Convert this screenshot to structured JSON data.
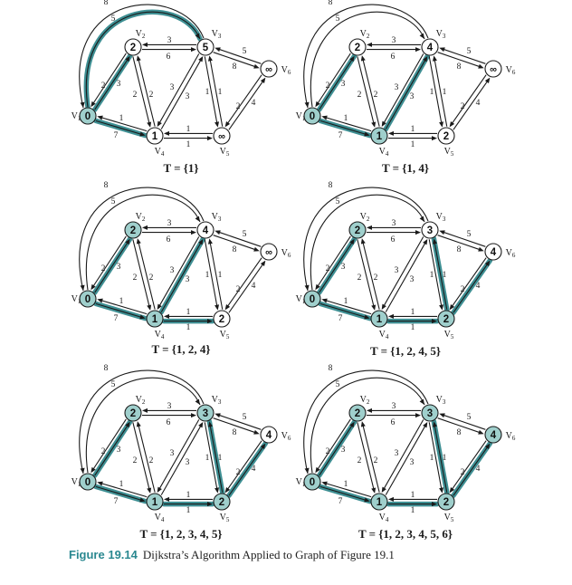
{
  "caption": {
    "figure": "Figure 19.14",
    "text": "Dijkstra’s Algorithm Applied to Graph of Figure 19.1"
  },
  "colors": {
    "highlight": "#3e8f93",
    "node_fill_known": "#9fcfcc",
    "edge": "#1a1a1a",
    "caption": "#2a8890"
  },
  "nodes": [
    {
      "id": "V1",
      "label": "V",
      "sub": "1"
    },
    {
      "id": "V2",
      "label": "V",
      "sub": "2"
    },
    {
      "id": "V3",
      "label": "V",
      "sub": "3"
    },
    {
      "id": "V4",
      "label": "V",
      "sub": "4"
    },
    {
      "id": "V5",
      "label": "V",
      "sub": "5"
    },
    {
      "id": "V6",
      "label": "V",
      "sub": "6"
    }
  ],
  "edges": [
    {
      "id": "e12",
      "from": "V1",
      "to": "V2",
      "weight": "2"
    },
    {
      "id": "e21",
      "from": "V2",
      "to": "V1",
      "weight": "3"
    },
    {
      "id": "e13",
      "from": "V1",
      "to": "V3",
      "weight": "5"
    },
    {
      "id": "e31",
      "from": "V3",
      "to": "V1",
      "weight": "8"
    },
    {
      "id": "e14",
      "from": "V1",
      "to": "V4",
      "weight": "1"
    },
    {
      "id": "e41",
      "from": "V4",
      "to": "V1",
      "weight": "7"
    },
    {
      "id": "e23",
      "from": "V2",
      "to": "V3",
      "weight": "3"
    },
    {
      "id": "e32",
      "from": "V3",
      "to": "V2",
      "weight": "6"
    },
    {
      "id": "e24",
      "from": "V2",
      "to": "V4",
      "weight": "2"
    },
    {
      "id": "e42",
      "from": "V4",
      "to": "V2",
      "weight": "2"
    },
    {
      "id": "e34",
      "from": "V3",
      "to": "V4",
      "weight": "3"
    },
    {
      "id": "e43",
      "from": "V4",
      "to": "V3",
      "weight": "3"
    },
    {
      "id": "e35",
      "from": "V3",
      "to": "V5",
      "weight": "1"
    },
    {
      "id": "e53",
      "from": "V5",
      "to": "V3",
      "weight": "1"
    },
    {
      "id": "e36",
      "from": "V3",
      "to": "V6",
      "weight": "5"
    },
    {
      "id": "e63",
      "from": "V6",
      "to": "V3",
      "weight": "8"
    },
    {
      "id": "e45",
      "from": "V4",
      "to": "V5",
      "weight": "1"
    },
    {
      "id": "e54",
      "from": "V5",
      "to": "V4",
      "weight": "1"
    },
    {
      "id": "e56",
      "from": "V5",
      "to": "V6",
      "weight": "2"
    },
    {
      "id": "e65",
      "from": "V6",
      "to": "V5",
      "weight": "4"
    }
  ],
  "panels": [
    {
      "id": "p1",
      "t_label": "T = {1}",
      "distances": {
        "V1": "0",
        "V2": "2",
        "V3": "5",
        "V4": "1",
        "V5": "∞",
        "V6": "∞"
      },
      "known": [
        "V1"
      ],
      "highlight_edges": [
        "e12",
        "e13",
        "e14"
      ]
    },
    {
      "id": "p2",
      "t_label": "T = {1, 4}",
      "distances": {
        "V1": "0",
        "V2": "2",
        "V3": "4",
        "V4": "1",
        "V5": "2",
        "V6": "∞"
      },
      "known": [
        "V1",
        "V4"
      ],
      "highlight_edges": [
        "e12",
        "e14",
        "e43"
      ]
    },
    {
      "id": "p3",
      "t_label": "T = {1, 2, 4}",
      "distances": {
        "V1": "0",
        "V2": "2",
        "V3": "4",
        "V4": "1",
        "V5": "2",
        "V6": "∞"
      },
      "known": [
        "V1",
        "V2",
        "V4"
      ],
      "highlight_edges": [
        "e12",
        "e14",
        "e43",
        "e45"
      ]
    },
    {
      "id": "p4",
      "t_label": "T = {1, 2, 4, 5}",
      "distances": {
        "V1": "0",
        "V2": "2",
        "V3": "3",
        "V4": "1",
        "V5": "2",
        "V6": "4"
      },
      "known": [
        "V1",
        "V2",
        "V4",
        "V5"
      ],
      "highlight_edges": [
        "e12",
        "e14",
        "e45",
        "e53",
        "e56"
      ]
    },
    {
      "id": "p5",
      "t_label": "T = {1, 2, 3, 4, 5}",
      "distances": {
        "V1": "0",
        "V2": "2",
        "V3": "3",
        "V4": "1",
        "V5": "2",
        "V6": "4"
      },
      "known": [
        "V1",
        "V2",
        "V3",
        "V4",
        "V5"
      ],
      "highlight_edges": [
        "e12",
        "e14",
        "e45",
        "e53",
        "e56"
      ]
    },
    {
      "id": "p6",
      "t_label": "T = {1, 2, 3, 4, 5, 6}",
      "distances": {
        "V1": "0",
        "V2": "2",
        "V3": "3",
        "V4": "1",
        "V5": "2",
        "V6": "4"
      },
      "known": [
        "V1",
        "V2",
        "V3",
        "V4",
        "V5",
        "V6"
      ],
      "highlight_edges": [
        "e12",
        "e14",
        "e45",
        "e53",
        "e56"
      ]
    }
  ]
}
